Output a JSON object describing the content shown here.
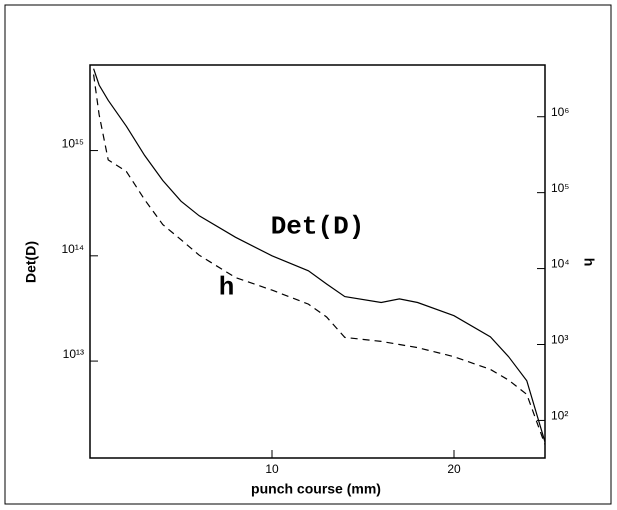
{
  "chart_data": {
    "type": "line",
    "xlabel": "punch course (mm)",
    "ylabel": "Det(D)",
    "y2label": "h",
    "x": [
      0.2,
      0.5,
      1,
      2,
      3,
      4,
      5,
      6,
      8,
      10,
      12,
      13,
      14,
      16,
      17,
      18,
      20,
      22,
      23,
      24,
      25
    ],
    "series": [
      {
        "name": "Det(D)",
        "color": "#000000",
        "dash": "solid",
        "values": [
          6000000000000000.0,
          4200000000000000.0,
          3000000000000000.0,
          1700000000000000.0,
          900000000000000.0,
          520000000000000.0,
          330000000000000.0,
          240000000000000.0,
          150000000000000.0,
          100000000000000.0,
          72000000000000.0,
          54000000000000.0,
          41000000000000.0,
          36000000000000.0,
          39000000000000.0,
          36000000000000.0,
          27000000000000.0,
          17000000000000.0,
          11000000000000.0,
          6500000000000.0,
          1700000000000.0
        ]
      },
      {
        "name": "h",
        "color": "#000000",
        "dash": "dashed",
        "axis": "y2",
        "values": [
          3600000.0,
          1070000.0,
          270000.0,
          190000.0,
          81000.0,
          38000.0,
          24000.0,
          15000.0,
          7600,
          5200,
          3400,
          2300,
          1240,
          1100,
          1000,
          910,
          690,
          470,
          340,
          220,
          48
        ]
      }
    ],
    "annotations": [
      {
        "text": "Det(D)",
        "x": 12.5,
        "y": 190000000000000.0
      },
      {
        "text": "h",
        "x": 7.5,
        "y": 50000000000000.0
      }
    ],
    "xlim": [
      0,
      25
    ],
    "xticks": [
      10,
      20
    ],
    "ylog": true,
    "ylim": [
      1200000000000.0,
      6500000000000000.0
    ],
    "yticks": [
      {
        "value": 10000000000000.0,
        "label": "10¹³"
      },
      {
        "value": 100000000000000.0,
        "label": "10¹⁴"
      },
      {
        "value": 1000000000000000.0,
        "label": "10¹⁵"
      }
    ],
    "y2log": true,
    "y2lim": [
      32,
      4800000.0
    ],
    "y2ticks": [
      {
        "value": 100,
        "label": "10²"
      },
      {
        "value": 1000,
        "label": "10³"
      },
      {
        "value": 10000,
        "label": "10⁴"
      },
      {
        "value": 100000,
        "label": "10⁵"
      },
      {
        "value": 1000000,
        "label": "10⁶"
      }
    ]
  }
}
